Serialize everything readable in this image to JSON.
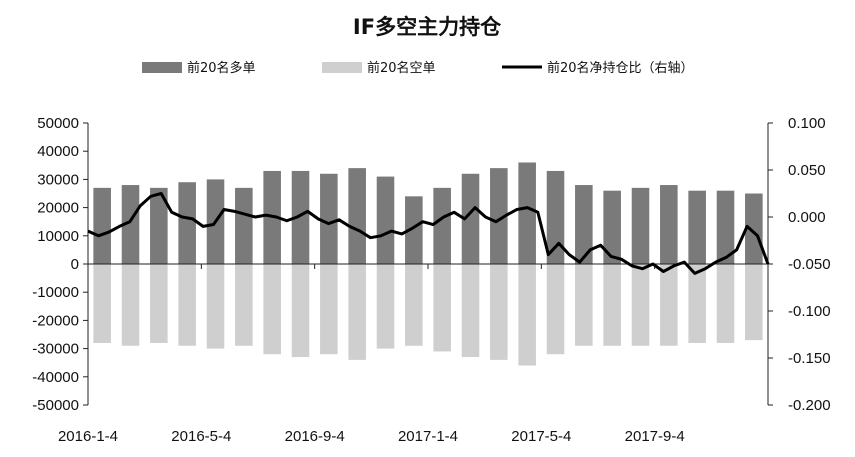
{
  "chart_data": {
    "type": "bar",
    "title": "IF多空主力持仓",
    "legend": [
      {
        "label": "前20名多单",
        "color": "#7a7a7a",
        "kind": "bar"
      },
      {
        "label": "前20名空单",
        "color": "#cfcfcf",
        "kind": "bar"
      },
      {
        "label": "前20名净持仓比（右轴）",
        "color": "#000000",
        "kind": "line"
      }
    ],
    "legend_position": "top",
    "y_left": {
      "min": -50000,
      "max": 50000,
      "step": 10000,
      "ticks": [
        "50000",
        "40000",
        "30000",
        "20000",
        "10000",
        "0",
        "-10000",
        "-20000",
        "-30000",
        "-40000",
        "-50000"
      ]
    },
    "y_right": {
      "min": -0.2,
      "max": 0.1,
      "step": 0.05,
      "ticks": [
        "0.100",
        "0.050",
        "0.000",
        "-0.050",
        "-0.100",
        "-0.150",
        "-0.200"
      ]
    },
    "x_tick_labels": [
      "2016-1-4",
      "2016-5-4",
      "2016-9-4",
      "2017-1-4",
      "2017-5-4",
      "2017-9-4"
    ],
    "n_periods": 24,
    "x_tick_period_index": [
      0,
      4,
      8,
      12,
      16,
      20
    ],
    "grid": false,
    "series": [
      {
        "name": "前20名多单",
        "type": "bar",
        "axis": "left",
        "values": [
          27000,
          28000,
          27000,
          29000,
          30000,
          27000,
          33000,
          33000,
          32000,
          34000,
          31000,
          24000,
          27000,
          32000,
          34000,
          36000,
          33000,
          28000,
          26000,
          27000,
          28000,
          26000,
          26000,
          25000
        ]
      },
      {
        "name": "前20名空单",
        "type": "bar",
        "axis": "left",
        "values": [
          -28000,
          -29000,
          -28000,
          -29000,
          -30000,
          -29000,
          -32000,
          -33000,
          -32000,
          -34000,
          -30000,
          -29000,
          -31000,
          -33000,
          -34000,
          -36000,
          -32000,
          -29000,
          -29000,
          -29000,
          -29000,
          -28000,
          -28000,
          -27000
        ]
      },
      {
        "name": "前20名净持仓比（右轴）",
        "type": "line",
        "axis": "right",
        "values": [
          -0.015,
          -0.02,
          -0.016,
          -0.01,
          -0.005,
          0.012,
          0.022,
          0.025,
          0.005,
          0.0,
          -0.002,
          -0.01,
          -0.008,
          0.008,
          0.006,
          0.003,
          0.0,
          0.002,
          0.0,
          -0.004,
          0.0,
          0.006,
          -0.002,
          -0.007,
          -0.003,
          -0.01,
          -0.015,
          -0.022,
          -0.02,
          -0.015,
          -0.018,
          -0.012,
          -0.005,
          -0.008,
          0.0,
          0.005,
          -0.002,
          0.01,
          0.0,
          -0.005,
          0.002,
          0.008,
          0.01,
          0.005,
          -0.04,
          -0.028,
          -0.04,
          -0.048,
          -0.035,
          -0.03,
          -0.042,
          -0.045,
          -0.052,
          -0.055,
          -0.05,
          -0.058,
          -0.052,
          -0.048,
          -0.06,
          -0.055,
          -0.048,
          -0.043,
          -0.035,
          -0.01,
          -0.02,
          -0.05
        ]
      }
    ]
  }
}
